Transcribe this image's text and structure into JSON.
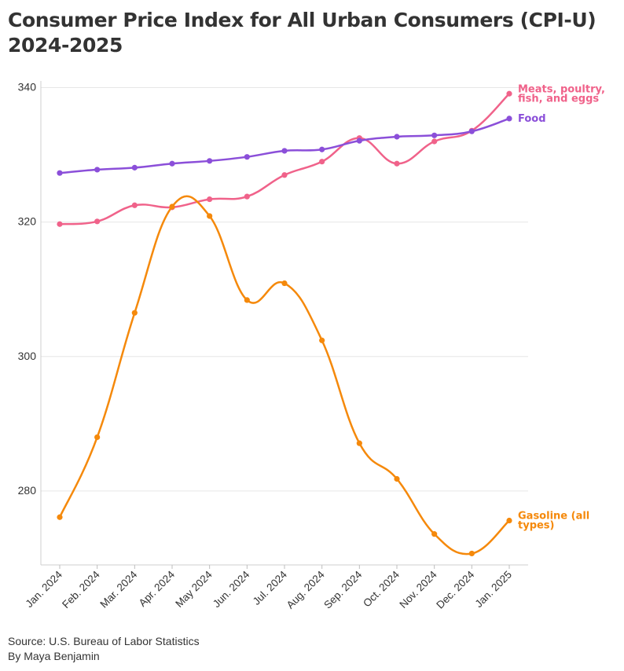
{
  "title_line1": "Consumer Price Index for All Urban Consumers (CPI-U)",
  "title_line2": "2024-2025",
  "source": "Source: U.S. Bureau of Labor Statistics",
  "byline": "By Maya Benjamin",
  "chart_data": {
    "type": "line",
    "categories": [
      "Jan. 2024",
      "Feb. 2024",
      "Mar. 2024",
      "Apr. 2024",
      "May 2024",
      "Jun. 2024",
      "Jul. 2024",
      "Aug. 2024",
      "Sep. 2024",
      "Oct. 2024",
      "Nov. 2024",
      "Dec. 2024",
      "Jan. 2025"
    ],
    "y_ticks": [
      280,
      300,
      320,
      340
    ],
    "ylim": [
      269,
      341
    ],
    "grid": "horizontal",
    "series": [
      {
        "name": "Meats, poultry, fish, and eggs",
        "label_lines": [
          "Meats, poultry,",
          "fish, and eggs"
        ],
        "color": "#f0628a",
        "values": [
          319.7,
          320.1,
          322.5,
          322.2,
          323.4,
          323.8,
          327.0,
          329.0,
          332.5,
          328.7,
          332.0,
          333.6,
          339.1
        ]
      },
      {
        "name": "Food",
        "label_lines": [
          "Food"
        ],
        "color": "#8b4fd9",
        "values": [
          327.3,
          327.8,
          328.1,
          328.7,
          329.1,
          329.7,
          330.6,
          330.8,
          332.1,
          332.7,
          332.9,
          333.5,
          335.4
        ]
      },
      {
        "name": "Gasoline (all types)",
        "label_lines": [
          "Gasoline (all",
          "types)"
        ],
        "color": "#f5890b",
        "values": [
          276.1,
          288.0,
          306.5,
          322.3,
          320.9,
          308.4,
          310.9,
          302.4,
          287.1,
          281.8,
          273.6,
          270.7,
          275.6
        ]
      }
    ]
  }
}
